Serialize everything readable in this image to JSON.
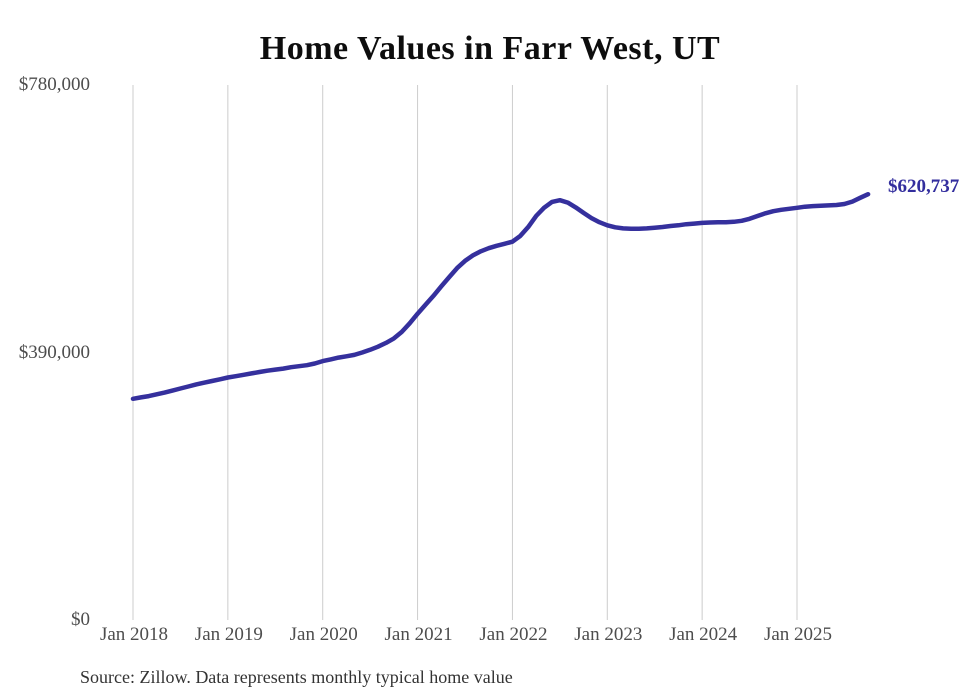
{
  "title": "Home Values in Farr West, UT",
  "source_note": "Source: Zillow. Data represents monthly typical home value",
  "end_label": "$620,737",
  "colors": {
    "line": "#35309D",
    "grid": "#cccccc",
    "axis_text": "#4d4d4d",
    "title_text": "#0d0d0d",
    "end_label_text": "#332E9E"
  },
  "chart_data": {
    "type": "line",
    "title": "Home Values in Farr West, UT",
    "xlabel": "",
    "ylabel": "",
    "ylim": [
      0,
      780000
    ],
    "y_ticks": [
      {
        "value": 0,
        "label": "$0"
      },
      {
        "value": 390000,
        "label": "$390,000"
      },
      {
        "value": 780000,
        "label": "$780,000"
      }
    ],
    "x_ticks": [
      "Jan 2018",
      "Jan 2019",
      "Jan 2020",
      "Jan 2021",
      "Jan 2022",
      "Jan 2023",
      "Jan 2024",
      "Jan 2025"
    ],
    "grid": "vertical-only",
    "legend": "none",
    "end_value": 620737,
    "series": [
      {
        "name": "Monthly typical home value",
        "points": [
          [
            "2018-01",
            322500
          ],
          [
            "2018-02",
            324500
          ],
          [
            "2018-03",
            326500
          ],
          [
            "2018-04",
            329000
          ],
          [
            "2018-05",
            331500
          ],
          [
            "2018-06",
            334500
          ],
          [
            "2018-07",
            337500
          ],
          [
            "2018-08",
            340500
          ],
          [
            "2018-09",
            343500
          ],
          [
            "2018-10",
            346000
          ],
          [
            "2018-11",
            348500
          ],
          [
            "2018-12",
            351000
          ],
          [
            "2019-01",
            353500
          ],
          [
            "2019-02",
            355500
          ],
          [
            "2019-03",
            357500
          ],
          [
            "2019-04",
            359500
          ],
          [
            "2019-05",
            361500
          ],
          [
            "2019-06",
            363500
          ],
          [
            "2019-07",
            365000
          ],
          [
            "2019-08",
            366500
          ],
          [
            "2019-09",
            368500
          ],
          [
            "2019-10",
            370000
          ],
          [
            "2019-11",
            371500
          ],
          [
            "2019-12",
            374000
          ],
          [
            "2020-01",
            377500
          ],
          [
            "2020-02",
            380000
          ],
          [
            "2020-03",
            382500
          ],
          [
            "2020-04",
            384500
          ],
          [
            "2020-05",
            386500
          ],
          [
            "2020-06",
            390000
          ],
          [
            "2020-07",
            394000
          ],
          [
            "2020-08",
            398500
          ],
          [
            "2020-09",
            404000
          ],
          [
            "2020-10",
            410500
          ],
          [
            "2020-11",
            420000
          ],
          [
            "2020-12",
            432500
          ],
          [
            "2021-01",
            446500
          ],
          [
            "2021-02",
            459500
          ],
          [
            "2021-03",
            472500
          ],
          [
            "2021-04",
            486500
          ],
          [
            "2021-05",
            500000
          ],
          [
            "2021-06",
            513000
          ],
          [
            "2021-07",
            523500
          ],
          [
            "2021-08",
            531500
          ],
          [
            "2021-09",
            537500
          ],
          [
            "2021-10",
            542000
          ],
          [
            "2021-11",
            545500
          ],
          [
            "2021-12",
            548500
          ],
          [
            "2022-01",
            551500
          ],
          [
            "2022-02",
            560000
          ],
          [
            "2022-03",
            573000
          ],
          [
            "2022-04",
            589000
          ],
          [
            "2022-05",
            601000
          ],
          [
            "2022-06",
            609500
          ],
          [
            "2022-07",
            612000
          ],
          [
            "2022-08",
            608500
          ],
          [
            "2022-09",
            601500
          ],
          [
            "2022-10",
            593500
          ],
          [
            "2022-11",
            586000
          ],
          [
            "2022-12",
            580000
          ],
          [
            "2023-01",
            575500
          ],
          [
            "2023-02",
            572500
          ],
          [
            "2023-03",
            571000
          ],
          [
            "2023-04",
            570500
          ],
          [
            "2023-05",
            570500
          ],
          [
            "2023-06",
            571000
          ],
          [
            "2023-07",
            572000
          ],
          [
            "2023-08",
            573000
          ],
          [
            "2023-09",
            574500
          ],
          [
            "2023-10",
            575500
          ],
          [
            "2023-11",
            577000
          ],
          [
            "2023-12",
            578000
          ],
          [
            "2024-01",
            579000
          ],
          [
            "2024-02",
            579500
          ],
          [
            "2024-03",
            580000
          ],
          [
            "2024-04",
            580000
          ],
          [
            "2024-05",
            580500
          ],
          [
            "2024-06",
            582000
          ],
          [
            "2024-07",
            585000
          ],
          [
            "2024-08",
            589000
          ],
          [
            "2024-09",
            593000
          ],
          [
            "2024-10",
            596000
          ],
          [
            "2024-11",
            598000
          ],
          [
            "2024-12",
            599500
          ],
          [
            "2025-01",
            601000
          ],
          [
            "2025-02",
            602500
          ],
          [
            "2025-03",
            603500
          ],
          [
            "2025-04",
            604000
          ],
          [
            "2025-05",
            604500
          ],
          [
            "2025-06",
            605000
          ],
          [
            "2025-07",
            606500
          ],
          [
            "2025-08",
            610000
          ],
          [
            "2025-09",
            615500
          ],
          [
            "2025-10",
            620737
          ]
        ]
      }
    ]
  }
}
